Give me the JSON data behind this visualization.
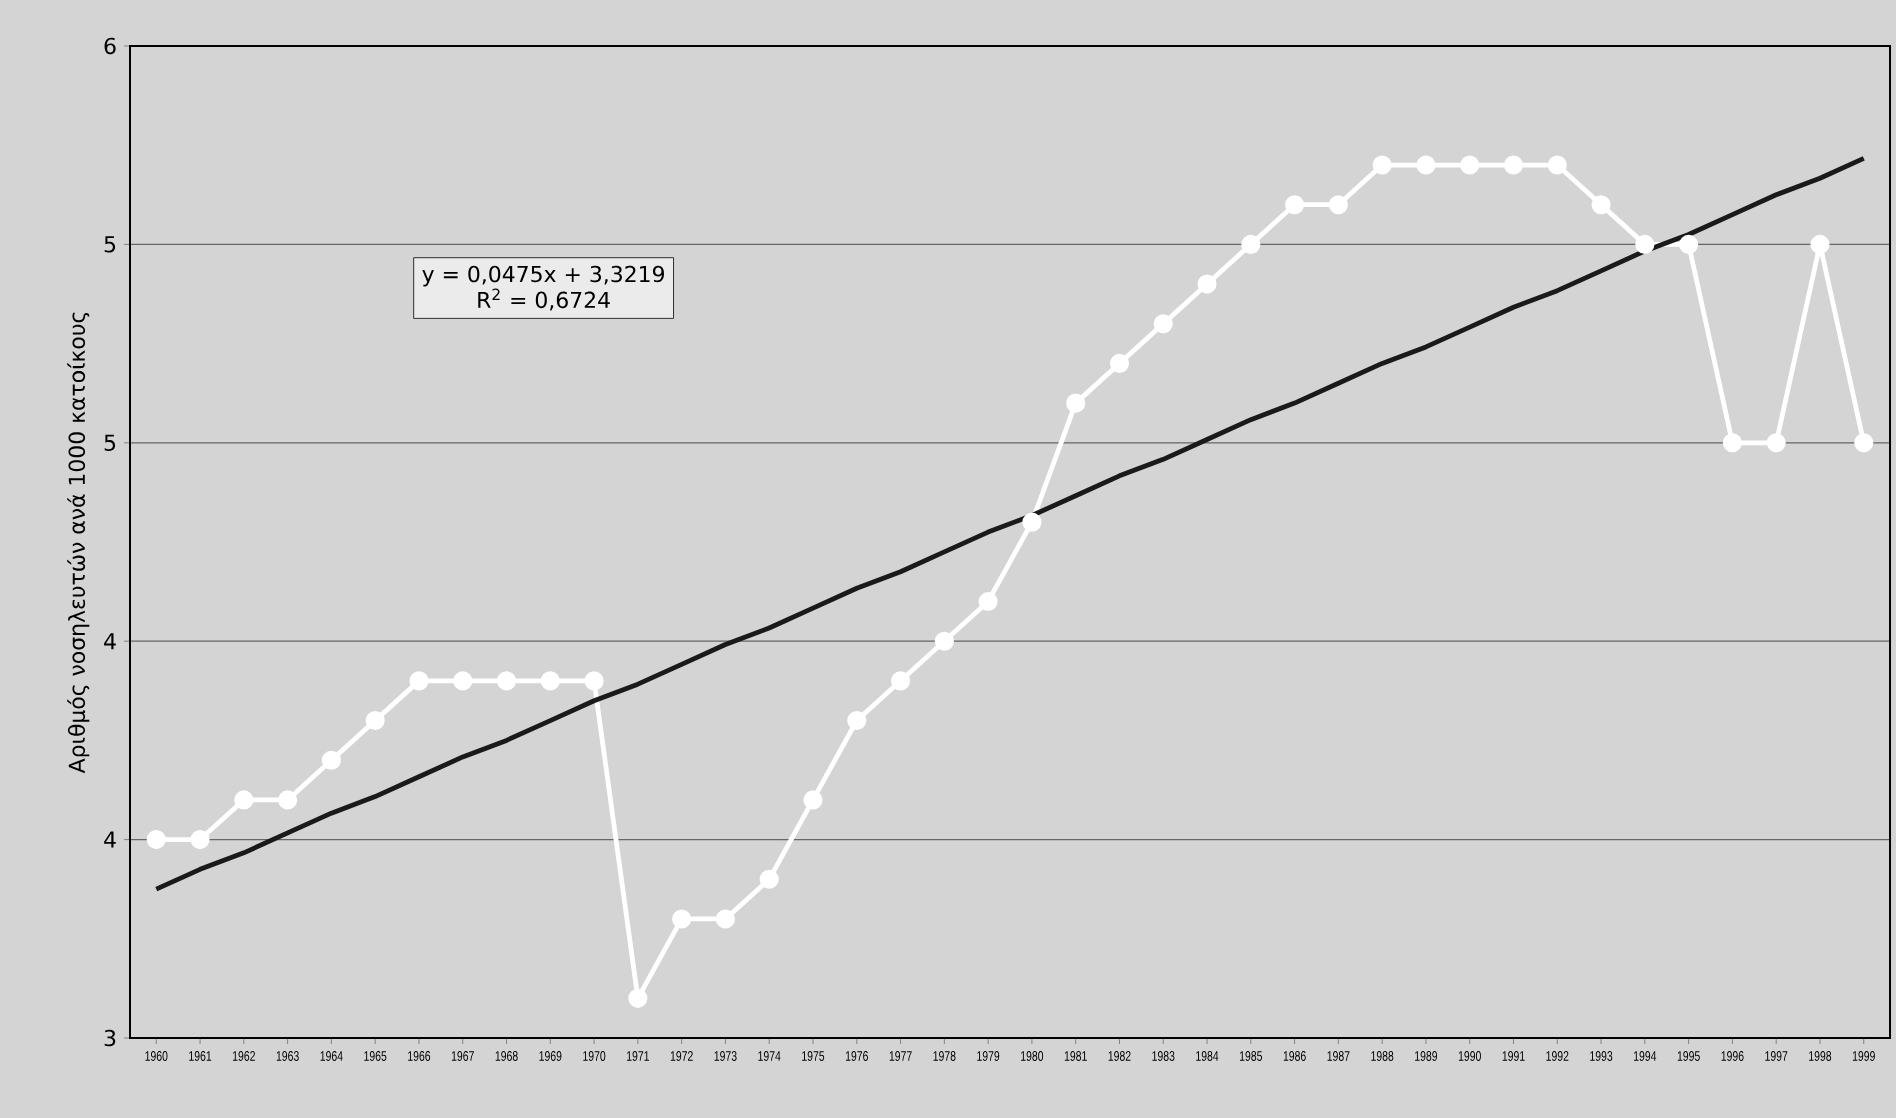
{
  "chart_data": {
    "type": "line",
    "ylabel": "Αριθμός νοσηλευτών ανά 1000 κατοίκους",
    "categories": [
      "1960",
      "1961",
      "1962",
      "1963",
      "1964",
      "1965",
      "1966",
      "1967",
      "1968",
      "1969",
      "1970",
      "1971",
      "1972",
      "1973",
      "1974",
      "1975",
      "1976",
      "1977",
      "1978",
      "1979",
      "1980",
      "1981",
      "1982",
      "1983",
      "1984",
      "1985",
      "1986",
      "1987",
      "1988",
      "1989",
      "1990",
      "1991",
      "1992",
      "1993",
      "1994",
      "1995",
      "1996",
      "1997",
      "1998",
      "1999"
    ],
    "series": [
      {
        "color": "#ffffff",
        "marker": "circle",
        "values": [
          3.6,
          3.6,
          3.72,
          3.72,
          3.84,
          3.96,
          4.08,
          4.08,
          4.08,
          4.08,
          4.08,
          3.12,
          3.36,
          3.36,
          3.48,
          3.72,
          3.96,
          4.08,
          4.2,
          4.32,
          4.56,
          4.92,
          5.04,
          5.16,
          5.28,
          5.4,
          5.52,
          5.52,
          5.64,
          5.64,
          5.64,
          5.64,
          5.64,
          5.52,
          5.4,
          5.4,
          4.8,
          4.8,
          5.4,
          4.8
        ]
      },
      {
        "color": "#1a1a1a",
        "marker": "none",
        "values": [
          3.45,
          3.51,
          3.56,
          3.62,
          3.68,
          3.73,
          3.79,
          3.85,
          3.9,
          3.96,
          4.02,
          4.07,
          4.13,
          4.19,
          4.24,
          4.3,
          4.36,
          4.41,
          4.47,
          4.53,
          4.58,
          4.64,
          4.7,
          4.75,
          4.81,
          4.87,
          4.92,
          4.98,
          5.04,
          5.09,
          5.15,
          5.21,
          5.26,
          5.32,
          5.38,
          5.43,
          5.49,
          5.55,
          5.6,
          5.66
        ]
      }
    ],
    "ylim": [
      3,
      6
    ],
    "yticks": [
      {
        "value": 3,
        "label": "3"
      },
      {
        "value": 3.6,
        "label": "4"
      },
      {
        "value": 4.2,
        "label": "4"
      },
      {
        "value": 4.8,
        "label": "5"
      },
      {
        "value": 5.4,
        "label": "5"
      },
      {
        "value": 6,
        "label": "6"
      }
    ],
    "grid": "y",
    "annotations": [
      "y = 0,0475x + 3,3219",
      "R$^{2}$ = 0,6724"
    ]
  }
}
